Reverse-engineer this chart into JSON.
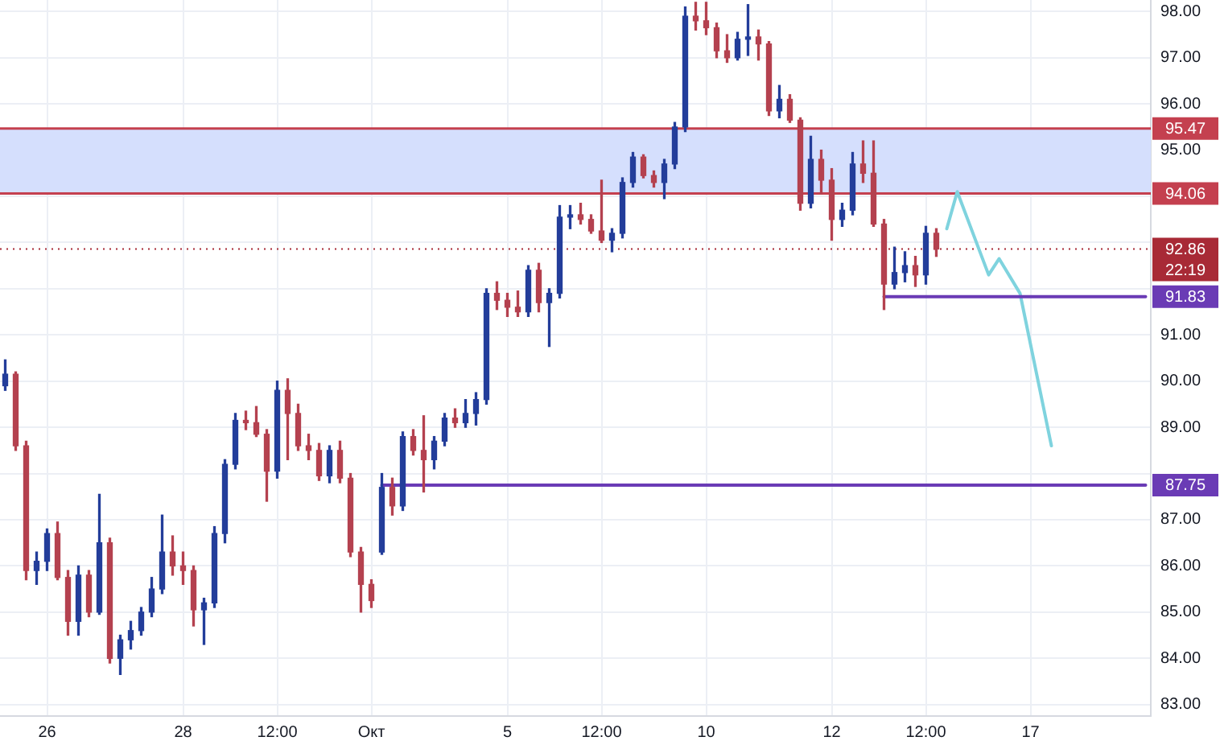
{
  "chart_data": {
    "type": "candlestick",
    "categories": [
      null,
      null,
      null,
      null,
      "26",
      null,
      null,
      null,
      null,
      null,
      null,
      null,
      null,
      null,
      null,
      null,
      null,
      "28",
      null,
      null,
      null,
      null,
      null,
      null,
      null,
      null,
      "12:00",
      null,
      null,
      null,
      null,
      null,
      null,
      null,
      null,
      "Окт",
      null,
      null,
      null,
      null,
      null,
      null,
      null,
      null,
      null,
      null,
      null,
      null,
      "5",
      null,
      null,
      null,
      null,
      null,
      null,
      null,
      null,
      "12:00",
      null,
      null,
      null,
      null,
      null,
      null,
      null,
      null,
      null,
      "10",
      null,
      null,
      null,
      null,
      null,
      null,
      null,
      null,
      null,
      null,
      null,
      "12",
      null,
      null,
      null,
      null,
      null,
      null,
      null,
      null,
      "12:00",
      null,
      null,
      null,
      null,
      null,
      null,
      null,
      null,
      null,
      "17",
      null,
      null,
      null,
      null,
      null,
      null,
      null,
      null,
      null,
      null,
      null
    ],
    "ohlc": [
      [
        89.9,
        90.46,
        89.8,
        90.15
      ],
      [
        90.15,
        90.2,
        88.5,
        88.6
      ],
      [
        88.6,
        88.7,
        85.7,
        85.9
      ],
      [
        85.9,
        86.3,
        85.6,
        86.1
      ],
      [
        86.1,
        86.8,
        85.9,
        86.7
      ],
      [
        86.7,
        86.95,
        85.7,
        85.75
      ],
      [
        85.75,
        85.9,
        84.5,
        84.8
      ],
      [
        84.8,
        86.0,
        84.5,
        85.8
      ],
      [
        85.8,
        85.9,
        84.9,
        85.0
      ],
      [
        85.0,
        87.55,
        84.95,
        86.5
      ],
      [
        86.5,
        86.6,
        83.9,
        84.0
      ],
      [
        84.0,
        84.5,
        83.65,
        84.4
      ],
      [
        84.4,
        84.8,
        84.2,
        84.6
      ],
      [
        84.6,
        85.1,
        84.5,
        85.0
      ],
      [
        85.0,
        85.75,
        84.9,
        85.5
      ],
      [
        85.5,
        87.1,
        85.4,
        86.3
      ],
      [
        86.3,
        86.65,
        85.8,
        86.0
      ],
      [
        86.0,
        86.3,
        85.6,
        85.9
      ],
      [
        85.9,
        86.0,
        84.7,
        85.05
      ],
      [
        85.05,
        85.3,
        84.3,
        85.2
      ],
      [
        85.2,
        86.85,
        85.1,
        86.7
      ],
      [
        86.7,
        88.3,
        86.5,
        88.2
      ],
      [
        88.2,
        89.3,
        88.1,
        89.15
      ],
      [
        89.15,
        89.35,
        88.95,
        89.1
      ],
      [
        89.1,
        89.45,
        88.8,
        88.85
      ],
      [
        88.85,
        88.95,
        87.4,
        88.05
      ],
      [
        88.05,
        90.0,
        87.9,
        89.8
      ],
      [
        89.8,
        90.05,
        88.3,
        89.3
      ],
      [
        89.3,
        89.5,
        88.5,
        88.6
      ],
      [
        88.6,
        88.85,
        88.3,
        88.5
      ],
      [
        88.5,
        88.65,
        87.85,
        87.95
      ],
      [
        87.95,
        88.6,
        87.8,
        88.5
      ],
      [
        88.5,
        88.7,
        87.8,
        87.9
      ],
      [
        87.9,
        88.0,
        86.2,
        86.3
      ],
      [
        86.3,
        86.4,
        85.0,
        85.6
      ],
      [
        85.6,
        85.7,
        85.1,
        85.25
      ],
      [
        86.3,
        88.0,
        86.25,
        87.7
      ],
      [
        87.7,
        87.9,
        87.1,
        87.3
      ],
      [
        87.3,
        88.9,
        87.2,
        88.8
      ],
      [
        88.8,
        88.95,
        88.4,
        88.5
      ],
      [
        88.5,
        89.25,
        87.6,
        88.3
      ],
      [
        88.3,
        88.8,
        88.1,
        88.7
      ],
      [
        88.7,
        89.3,
        88.6,
        89.2
      ],
      [
        89.2,
        89.4,
        89.0,
        89.1
      ],
      [
        89.1,
        89.6,
        89.0,
        89.3
      ],
      [
        89.3,
        89.75,
        89.05,
        89.6
      ],
      [
        89.6,
        92.0,
        89.5,
        91.9
      ],
      [
        91.9,
        92.15,
        91.55,
        91.75
      ],
      [
        91.75,
        91.9,
        91.4,
        91.6
      ],
      [
        91.6,
        91.95,
        91.4,
        91.5
      ],
      [
        91.5,
        92.5,
        91.4,
        92.4
      ],
      [
        92.4,
        92.55,
        91.5,
        91.7
      ],
      [
        91.7,
        92.0,
        90.75,
        91.9
      ],
      [
        91.9,
        93.8,
        91.8,
        93.55
      ],
      [
        93.55,
        93.8,
        93.3,
        93.6
      ],
      [
        93.6,
        93.85,
        93.4,
        93.5
      ],
      [
        93.5,
        93.6,
        93.2,
        93.25
      ],
      [
        93.25,
        94.35,
        93.0,
        93.05
      ],
      [
        93.05,
        93.3,
        92.8,
        93.2
      ],
      [
        93.2,
        94.4,
        93.1,
        94.3
      ],
      [
        94.3,
        94.95,
        94.2,
        94.85
      ],
      [
        94.85,
        94.9,
        94.4,
        94.45
      ],
      [
        94.45,
        94.55,
        94.2,
        94.3
      ],
      [
        94.3,
        94.8,
        93.95,
        94.7
      ],
      [
        94.7,
        95.6,
        94.6,
        95.5
      ],
      [
        95.5,
        98.1,
        95.4,
        97.9
      ],
      [
        97.9,
        98.2,
        97.6,
        97.8
      ],
      [
        97.8,
        98.2,
        97.5,
        97.65
      ],
      [
        97.65,
        97.75,
        97.0,
        97.15
      ],
      [
        97.15,
        97.5,
        96.9,
        97.0
      ],
      [
        97.0,
        97.55,
        96.95,
        97.4
      ],
      [
        97.4,
        98.15,
        97.05,
        97.45
      ],
      [
        97.45,
        97.6,
        96.95,
        97.3
      ],
      [
        97.3,
        97.35,
        95.75,
        95.85
      ],
      [
        95.85,
        96.4,
        95.7,
        96.1
      ],
      [
        96.1,
        96.2,
        95.6,
        95.65
      ],
      [
        95.65,
        95.7,
        93.7,
        93.85
      ],
      [
        93.85,
        95.3,
        93.75,
        94.8
      ],
      [
        94.8,
        95.0,
        94.05,
        94.35
      ],
      [
        94.35,
        94.6,
        93.05,
        93.5
      ],
      [
        93.5,
        93.85,
        93.35,
        93.7
      ],
      [
        93.7,
        94.95,
        93.6,
        94.7
      ],
      [
        94.7,
        95.2,
        94.3,
        94.5
      ],
      [
        94.5,
        95.2,
        93.35,
        93.4
      ],
      [
        93.4,
        93.5,
        91.55,
        92.1
      ],
      [
        92.1,
        92.9,
        92.0,
        92.35
      ],
      [
        92.35,
        92.8,
        92.15,
        92.5
      ],
      [
        92.5,
        92.7,
        92.05,
        92.3
      ],
      [
        92.3,
        93.35,
        92.1,
        93.2
      ],
      [
        93.2,
        93.3,
        92.7,
        92.86
      ],
      null,
      null,
      null,
      null,
      null,
      null,
      null,
      null,
      null,
      null,
      null,
      null,
      null,
      null,
      null,
      null,
      null,
      null,
      null,
      null
    ],
    "colors": [
      "#233d9a",
      "#b4414f",
      "#b4414f",
      "#233d9a",
      "#233d9a",
      "#b4414f",
      "#b4414f",
      "#233d9a",
      "#b4414f",
      "#233d9a",
      "#b4414f",
      "#233d9a",
      "#233d9a",
      "#233d9a",
      "#233d9a",
      "#233d9a",
      "#b4414f",
      "#b4414f",
      "#b4414f",
      "#233d9a",
      "#233d9a",
      "#233d9a",
      "#233d9a",
      "#b4414f",
      "#b4414f",
      "#b4414f",
      "#233d9a",
      "#b4414f",
      "#b4414f",
      "#b4414f",
      "#b4414f",
      "#233d9a",
      "#b4414f",
      "#b4414f",
      "#b4414f",
      "#b4414f",
      "#233d9a",
      "#b4414f",
      "#233d9a",
      "#b4414f",
      "#b4414f",
      "#233d9a",
      "#233d9a",
      "#b4414f",
      "#233d9a",
      "#233d9a",
      "#233d9a",
      "#b4414f",
      "#b4414f",
      "#b4414f",
      "#233d9a",
      "#b4414f",
      "#233d9a",
      "#233d9a",
      "#233d9a",
      "#b4414f",
      "#b4414f",
      "#b4414f",
      "#233d9a",
      "#233d9a",
      "#233d9a",
      "#b4414f",
      "#b4414f",
      "#233d9a",
      "#233d9a",
      "#233d9a",
      "#b4414f",
      "#b4414f",
      "#b4414f",
      "#b4414f",
      "#233d9a",
      "#233d9a",
      "#b4414f",
      "#b4414f",
      "#233d9a",
      "#b4414f",
      "#b4414f",
      "#233d9a",
      "#b4414f",
      "#b4414f",
      "#233d9a",
      "#233d9a",
      "#b4414f",
      "#b4414f",
      "#b4414f",
      "#233d9a",
      "#233d9a",
      "#b4414f",
      "#233d9a",
      "#b4414f",
      null,
      null,
      null,
      null,
      null,
      null,
      null,
      null,
      null,
      null,
      null,
      null,
      null,
      null,
      null,
      null,
      null,
      null,
      null,
      null
    ],
    "series": [
      {
        "type": "line",
        "color": "#6a3bb5",
        "values": [
          null,
          null,
          null,
          null,
          null,
          null,
          null,
          null,
          null,
          null,
          null,
          null,
          null,
          null,
          null,
          null,
          null,
          null,
          null,
          null,
          null,
          null,
          null,
          null,
          null,
          null,
          null,
          null,
          null,
          null,
          null,
          null,
          null,
          null,
          null,
          null,
          87.75,
          87.75,
          87.75,
          87.75,
          87.75,
          87.75,
          87.75,
          87.75,
          87.75,
          87.75,
          87.75,
          87.75,
          87.75,
          87.75,
          87.75,
          87.75,
          87.75,
          87.75,
          87.75,
          87.75,
          87.75,
          87.75,
          87.75,
          87.75,
          87.75,
          87.75,
          87.75,
          87.75,
          87.75,
          87.75,
          87.75,
          87.75,
          87.75,
          87.75,
          87.75,
          87.75,
          87.75,
          87.75,
          87.75,
          87.75,
          87.75,
          87.75,
          87.75,
          87.75,
          87.75,
          87.75,
          87.75,
          87.75,
          87.75,
          87.75,
          87.75,
          87.75,
          87.75,
          87.75,
          87.75,
          87.75,
          87.75,
          87.75,
          87.75,
          87.75,
          87.75,
          87.75,
          87.75,
          87.75,
          87.75,
          87.75,
          87.75,
          87.75,
          87.75,
          87.75,
          87.75,
          87.75,
          87.75,
          87.75
        ],
        "value_labels": [
          null,
          null,
          null,
          null,
          null,
          null,
          null,
          null,
          null,
          null,
          null,
          null,
          null,
          null,
          null,
          null,
          null,
          null,
          null,
          null,
          null,
          null,
          null,
          null,
          null,
          null,
          null,
          null,
          null,
          null,
          null,
          null,
          null,
          null,
          null,
          null,
          null,
          null,
          null,
          null,
          null,
          null,
          null,
          null,
          null,
          null,
          null,
          null,
          null,
          null,
          null,
          null,
          null,
          null,
          null,
          null,
          null,
          null,
          null,
          null,
          null,
          null,
          null,
          null,
          null,
          null,
          null,
          null,
          null,
          null,
          null,
          null,
          null,
          null,
          null,
          null,
          null,
          null,
          null,
          null,
          null,
          null,
          null,
          null,
          null,
          null,
          null,
          null,
          null,
          null,
          null,
          null,
          null,
          null,
          null,
          null,
          null,
          null,
          null,
          null,
          null,
          null,
          null,
          null,
          null,
          null,
          null,
          null,
          null,
          "87.75"
        ]
      },
      {
        "type": "line",
        "color": "#6a3bb5",
        "values": [
          null,
          null,
          null,
          null,
          null,
          null,
          null,
          null,
          null,
          null,
          null,
          null,
          null,
          null,
          null,
          null,
          null,
          null,
          null,
          null,
          null,
          null,
          null,
          null,
          null,
          null,
          null,
          null,
          null,
          null,
          null,
          null,
          null,
          null,
          null,
          null,
          null,
          null,
          null,
          null,
          null,
          null,
          null,
          null,
          null,
          null,
          null,
          null,
          null,
          null,
          null,
          null,
          null,
          null,
          null,
          null,
          null,
          null,
          null,
          null,
          null,
          null,
          null,
          null,
          null,
          null,
          null,
          null,
          null,
          null,
          null,
          null,
          null,
          null,
          null,
          null,
          null,
          null,
          null,
          null,
          null,
          null,
          null,
          null,
          91.83,
          91.83,
          91.83,
          91.83,
          91.83,
          91.83,
          91.83,
          91.83,
          91.83,
          91.83,
          91.83,
          91.83,
          91.83,
          91.83,
          91.83,
          91.83,
          91.83,
          91.83,
          91.83,
          91.83,
          91.83,
          91.83,
          91.83,
          91.83,
          91.83,
          91.83
        ],
        "value_labels": [
          null,
          null,
          null,
          null,
          null,
          null,
          null,
          null,
          null,
          null,
          null,
          null,
          null,
          null,
          null,
          null,
          null,
          null,
          null,
          null,
          null,
          null,
          null,
          null,
          null,
          null,
          null,
          null,
          null,
          null,
          null,
          null,
          null,
          null,
          null,
          null,
          null,
          null,
          null,
          null,
          null,
          null,
          null,
          null,
          null,
          null,
          null,
          null,
          null,
          null,
          null,
          null,
          null,
          null,
          null,
          null,
          null,
          null,
          null,
          null,
          null,
          null,
          null,
          null,
          null,
          null,
          null,
          null,
          null,
          null,
          null,
          null,
          null,
          null,
          null,
          null,
          null,
          null,
          null,
          null,
          null,
          null,
          null,
          null,
          null,
          null,
          null,
          null,
          null,
          null,
          null,
          null,
          null,
          null,
          null,
          null,
          null,
          null,
          null,
          null,
          null,
          null,
          null,
          null,
          null,
          null,
          null,
          null,
          null,
          "91.83"
        ]
      },
      {
        "type": "line",
        "color": "#7fd3de",
        "values": [
          null,
          null,
          null,
          null,
          null,
          null,
          null,
          null,
          null,
          null,
          null,
          null,
          null,
          null,
          null,
          null,
          null,
          null,
          null,
          null,
          null,
          null,
          null,
          null,
          null,
          null,
          null,
          null,
          null,
          null,
          null,
          null,
          null,
          null,
          null,
          null,
          null,
          null,
          null,
          null,
          null,
          null,
          null,
          null,
          null,
          null,
          null,
          null,
          null,
          null,
          null,
          null,
          null,
          null,
          null,
          null,
          null,
          null,
          null,
          null,
          null,
          null,
          null,
          null,
          null,
          null,
          null,
          null,
          null,
          null,
          null,
          null,
          null,
          null,
          null,
          null,
          null,
          null,
          null,
          null,
          null,
          null,
          null,
          null,
          null,
          null,
          null,
          null,
          null,
          null,
          93.3,
          94.1,
          null,
          null,
          92.3,
          92.65,
          null,
          91.9,
          null,
          null,
          88.6,
          null,
          null,
          null,
          null,
          null,
          null,
          null,
          null,
          null
        ]
      }
    ],
    "ylim": [
      82.75,
      98.25
    ],
    "yticks": [
      {
        "value": 83,
        "label": "83.00"
      },
      {
        "value": 84,
        "label": "84.00"
      },
      {
        "value": 85,
        "label": "85.00"
      },
      {
        "value": 86,
        "label": "86.00"
      },
      {
        "value": 87,
        "label": "87.00"
      },
      {
        "value": 88,
        "label": null
      },
      {
        "value": 89,
        "label": "89.00"
      },
      {
        "value": 90,
        "label": "90.00"
      },
      {
        "value": 91,
        "label": "91.00"
      },
      {
        "value": 92,
        "label": null
      },
      {
        "value": 93,
        "label": null
      },
      {
        "value": 94,
        "label": null
      },
      {
        "value": 95,
        "label": "95.00"
      },
      {
        "value": 96,
        "label": "96.00"
      },
      {
        "value": 97,
        "label": "97.00"
      },
      {
        "value": 98,
        "label": "98.00"
      }
    ],
    "bands": [
      {
        "axis": "y",
        "from": 94.06,
        "to": 95.47,
        "color": "#d5dffd"
      }
    ],
    "ref_lines": [
      {
        "axis": "y",
        "value": 95.47,
        "label": "95.47",
        "color": "#c4404f"
      },
      {
        "axis": "y",
        "value": 94.06,
        "label": "94.06",
        "color": "#c4404f"
      },
      {
        "axis": "y",
        "value": 92.86,
        "label": "92.86",
        "color": "#a82a36",
        "line_style": "dotted"
      }
    ],
    "annotations": [
      "22:19"
    ],
    "grid": true
  }
}
